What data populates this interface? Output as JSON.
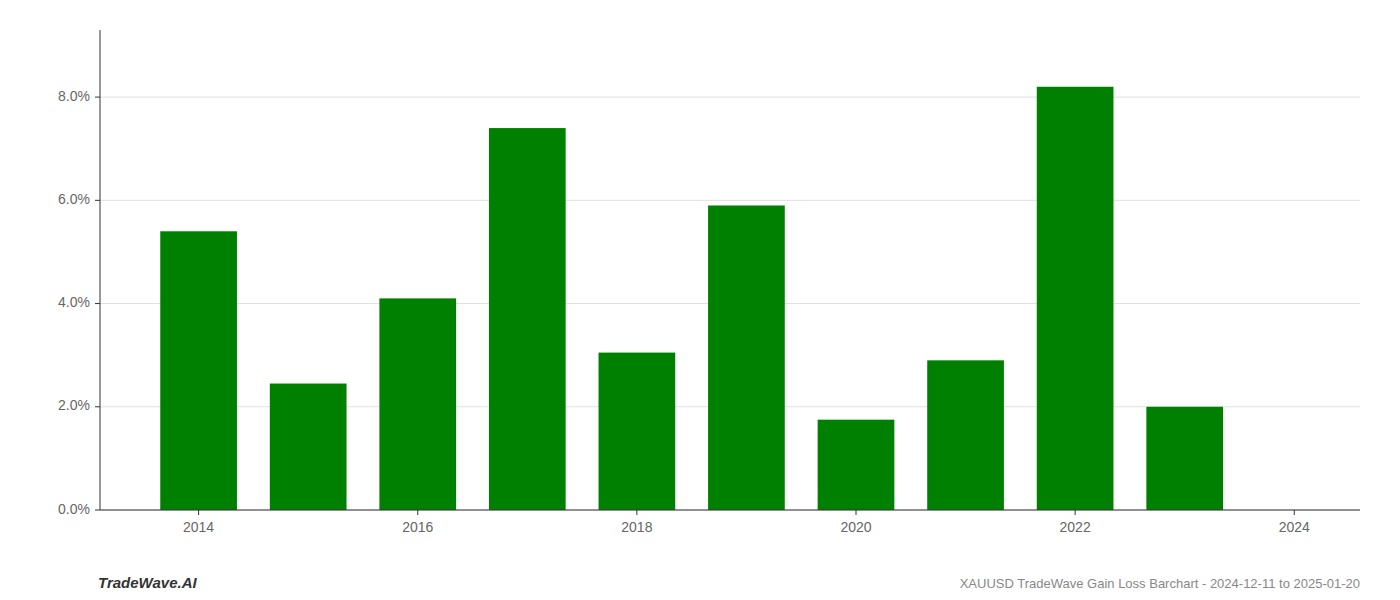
{
  "chart_data": {
    "type": "bar",
    "x": [
      2014,
      2015,
      2016,
      2017,
      2018,
      2019,
      2020,
      2021,
      2022,
      2023
    ],
    "values": [
      0.054,
      0.0245,
      0.041,
      0.074,
      0.0305,
      0.059,
      0.0175,
      0.029,
      0.082,
      0.02
    ],
    "color": "#008000",
    "xlim": [
      2013.1,
      2024.6
    ],
    "xticks": [
      2014,
      2016,
      2018,
      2020,
      2022,
      2024
    ],
    "ylim": [
      0,
      0.093
    ],
    "yticks": [
      {
        "value": 0.0,
        "label": "0.0%"
      },
      {
        "value": 0.02,
        "label": "2.0%"
      },
      {
        "value": 0.04,
        "label": "4.0%"
      },
      {
        "value": 0.06,
        "label": "6.0%"
      },
      {
        "value": 0.08,
        "label": "8.0%"
      }
    ],
    "grid": true,
    "annotations": [
      "TradeWave.AI",
      "XAUUSD TradeWave Gain Loss Barchart - 2024-12-11 to 2025-01-20"
    ]
  }
}
